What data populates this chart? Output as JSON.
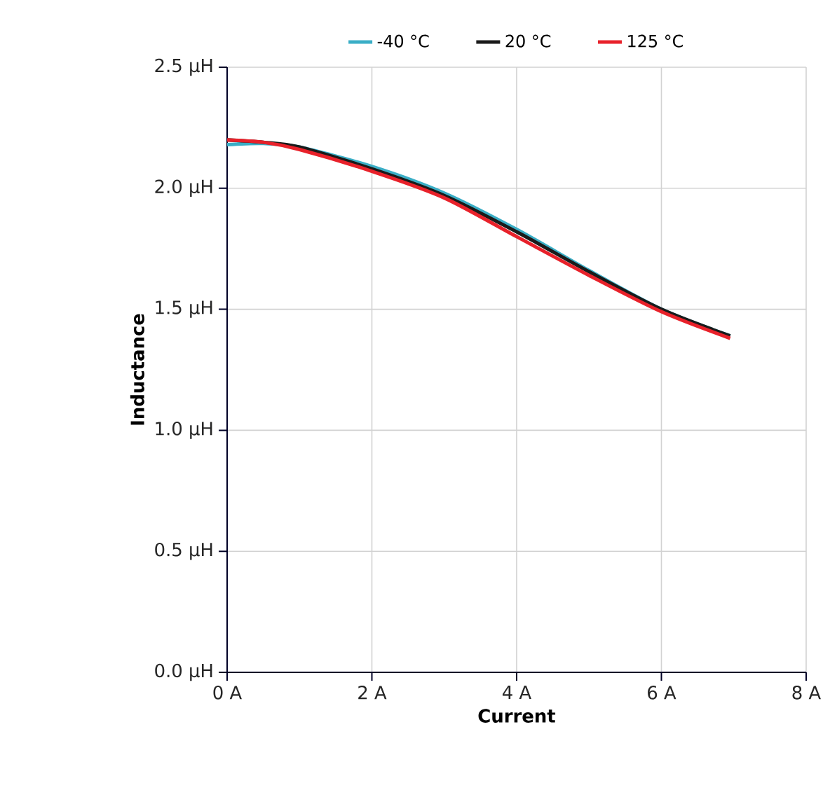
{
  "chart_data": {
    "type": "line",
    "xlabel": "Current",
    "ylabel": "Inductance",
    "xlim": [
      0,
      8
    ],
    "ylim": [
      0,
      2.5
    ],
    "xticks": [
      {
        "value": 0,
        "label": "0 A"
      },
      {
        "value": 2,
        "label": "2 A"
      },
      {
        "value": 4,
        "label": "4 A"
      },
      {
        "value": 6,
        "label": "6 A"
      },
      {
        "value": 8,
        "label": "8 A"
      }
    ],
    "yticks": [
      {
        "value": 0,
        "label": "0.0 µH"
      },
      {
        "value": 0.5,
        "label": "0.5 µH"
      },
      {
        "value": 1,
        "label": "1.0 µH"
      },
      {
        "value": 1.5,
        "label": "1.5 µH"
      },
      {
        "value": 2,
        "label": "2.0 µH"
      },
      {
        "value": 2.5,
        "label": "2.5 µH"
      }
    ],
    "x": [
      0,
      0.5,
      1,
      2,
      3,
      4,
      5,
      6,
      6.95
    ],
    "series": [
      {
        "name": "-40 °C",
        "color": "#3aaec6",
        "values": [
          2.18,
          2.185,
          2.17,
          2.09,
          1.98,
          1.83,
          1.66,
          1.5,
          1.39
        ]
      },
      {
        "name": "20 °C",
        "color": "#1a1a1a",
        "values": [
          2.2,
          2.19,
          2.17,
          2.08,
          1.97,
          1.82,
          1.655,
          1.5,
          1.39
        ]
      },
      {
        "name": "125 °C",
        "color": "#e8212a",
        "values": [
          2.2,
          2.19,
          2.16,
          2.07,
          1.96,
          1.8,
          1.64,
          1.49,
          1.38
        ]
      }
    ],
    "grid": true,
    "legend": "top",
    "marker": "none",
    "line_style": "solid"
  }
}
